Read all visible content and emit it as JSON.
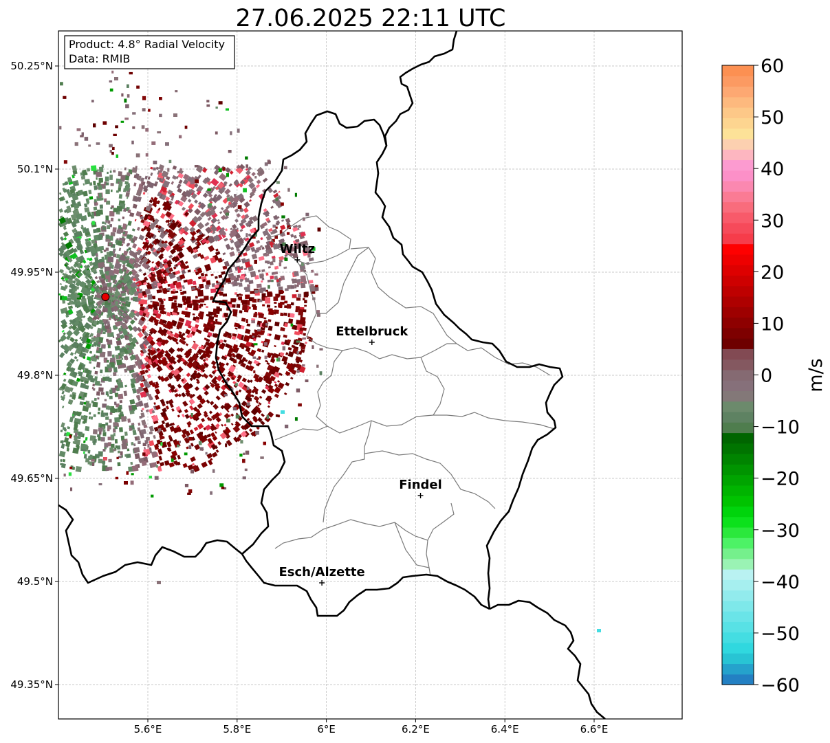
{
  "title": "27.06.2025 22:11 UTC",
  "info_box": {
    "line1": "Product: 4.8° Radial Velocity",
    "line2": "Data: RMIB"
  },
  "map": {
    "lon_range": [
      5.4,
      6.8
    ],
    "lat_range": [
      49.3,
      50.3
    ],
    "lon_ticks": [
      {
        "value": 5.6,
        "label": "5.6°E"
      },
      {
        "value": 5.8,
        "label": "5.8°E"
      },
      {
        "value": 6.0,
        "label": "6°E"
      },
      {
        "value": 6.2,
        "label": "6.2°E"
      },
      {
        "value": 6.4,
        "label": "6.4°E"
      },
      {
        "value": 6.6,
        "label": "6.6°E"
      }
    ],
    "lat_ticks": [
      {
        "value": 50.25,
        "label": "50.25°N"
      },
      {
        "value": 50.1,
        "label": "50.1°N"
      },
      {
        "value": 49.95,
        "label": "49.95°N"
      },
      {
        "value": 49.8,
        "label": "49.8°N"
      },
      {
        "value": 49.65,
        "label": "49.65°N"
      },
      {
        "value": 49.5,
        "label": "49.5°N"
      },
      {
        "value": 49.35,
        "label": "49.35°N"
      }
    ],
    "cities": [
      {
        "name": "Wiltz",
        "lon": 5.935,
        "lat": 49.968
      },
      {
        "name": "Ettelbruck",
        "lon": 6.102,
        "lat": 49.848
      },
      {
        "name": "Findel",
        "lon": 6.211,
        "lat": 49.625
      },
      {
        "name": "Esch/Alzette",
        "lon": 5.99,
        "lat": 49.498
      }
    ],
    "radar_site": {
      "lon": 5.505,
      "lat": 49.914,
      "color": "#e60000"
    }
  },
  "colorbar": {
    "min": -60,
    "max": 60,
    "unit": "m/s",
    "ticks": [
      {
        "value": 60,
        "label": "60"
      },
      {
        "value": 50,
        "label": "50"
      },
      {
        "value": 40,
        "label": "40"
      },
      {
        "value": 30,
        "label": "30"
      },
      {
        "value": 20,
        "label": "20"
      },
      {
        "value": 10,
        "label": "10"
      },
      {
        "value": 0,
        "label": "0"
      },
      {
        "value": -10,
        "label": "−10"
      },
      {
        "value": -20,
        "label": "−20"
      },
      {
        "value": -30,
        "label": "−30"
      },
      {
        "value": -40,
        "label": "−40"
      },
      {
        "value": -50,
        "label": "−50"
      },
      {
        "value": -60,
        "label": "−60"
      }
    ],
    "colors": [
      "#2380c3",
      "#25a2cc",
      "#28c4d4",
      "#30d8df",
      "#44dde2",
      "#58e1e5",
      "#6ae4e8",
      "#7ee8ea",
      "#92ebed",
      "#a6efef",
      "#b9f2f2",
      "#9af3b4",
      "#75f08c",
      "#4df266",
      "#2be83c",
      "#0ce11c",
      "#00d40c",
      "#00c300",
      "#00b400",
      "#00a400",
      "#009400",
      "#008400",
      "#007400",
      "#006500",
      "#4f7d4e",
      "#5e8262",
      "#6c8a6c",
      "#837878",
      "#86707a",
      "#856a72",
      "#845860",
      "#824a53",
      "#6e0000",
      "#7e0000",
      "#8e0000",
      "#9e0000",
      "#ae0000",
      "#be0000",
      "#ce0000",
      "#de0000",
      "#ee0000",
      "#fe0000",
      "#f63c4a",
      "#f64a5a",
      "#f85a6a",
      "#f96c7c",
      "#fa7b94",
      "#fb88b0",
      "#fc90c8",
      "#fc9bd0",
      "#fdb6c0",
      "#fcd0b0",
      "#fde298",
      "#fdd590",
      "#fdc888",
      "#fdb97e",
      "#fda872",
      "#fc9a62",
      "#fc9052"
    ]
  }
}
